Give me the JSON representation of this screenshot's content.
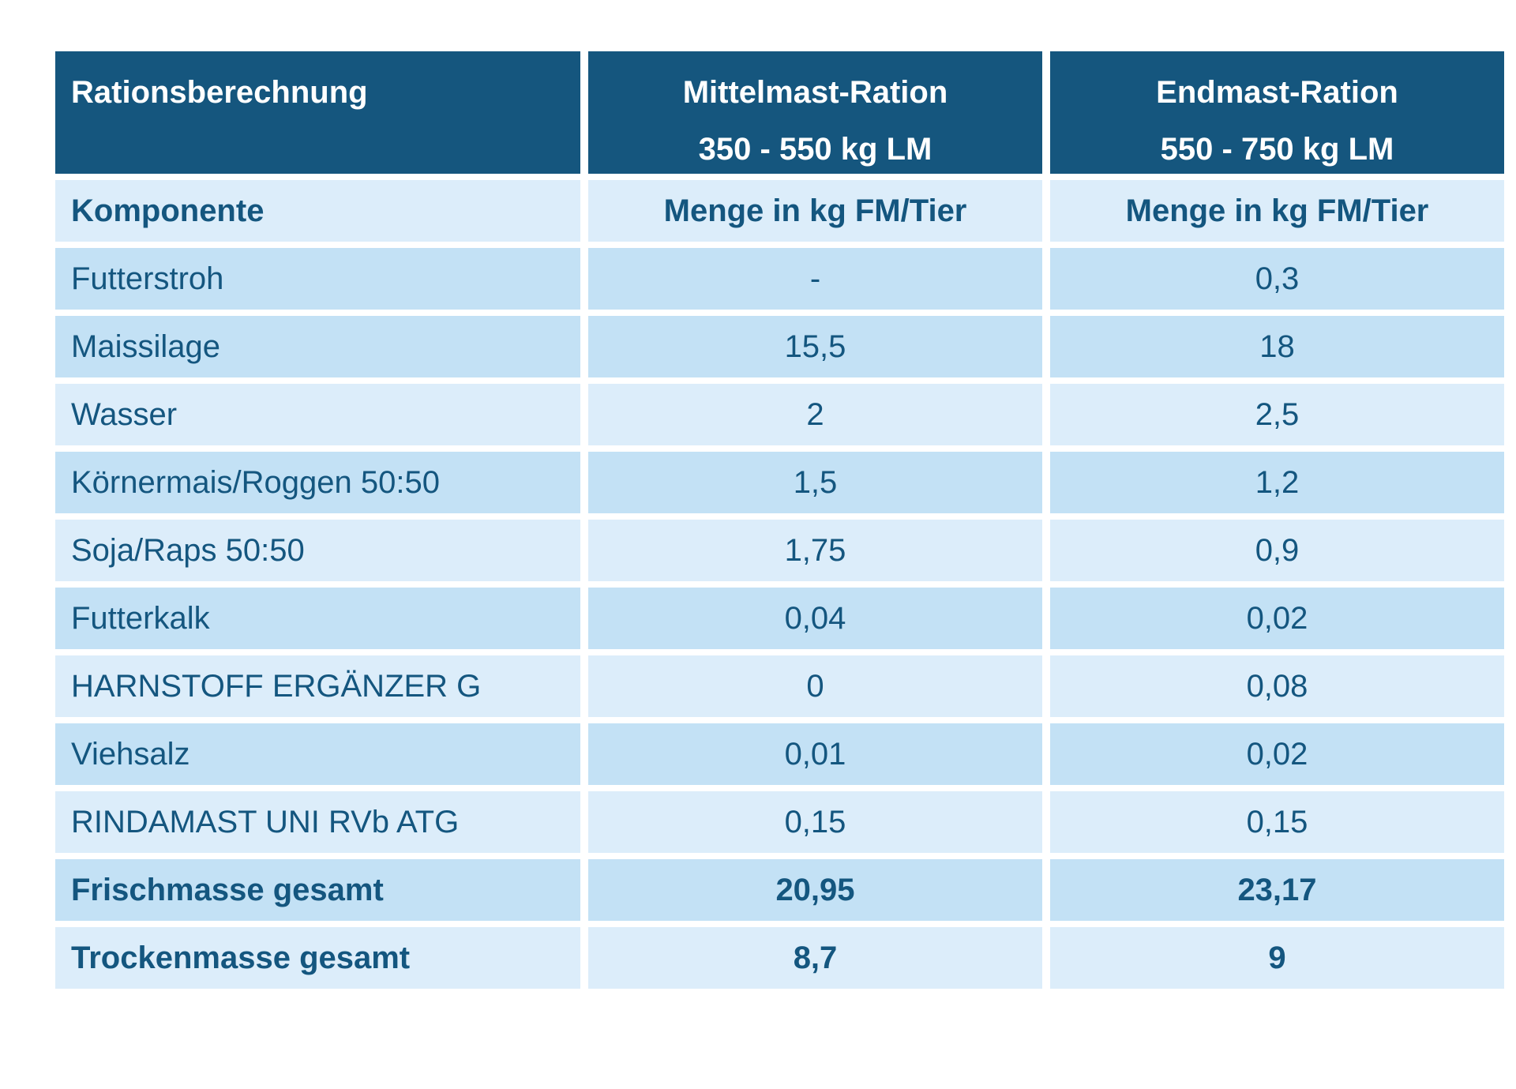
{
  "table": {
    "colors": {
      "header_bg": "#15567e",
      "row_light": "#dcedfa",
      "row_dark": "#c3e1f5",
      "text_blue": "#14567f"
    },
    "header": {
      "col1_line1": "Rationsberechnung",
      "col1_line2": "",
      "col2_line1": "Mittelmast-Ration",
      "col2_line2": "350 - 550 kg LM",
      "col3_line1": "Endmast-Ration",
      "col3_line2": "550 - 750 kg LM"
    },
    "rows": [
      {
        "name": "Komponente",
        "v1": "Menge in kg FM/Tier",
        "v2": "Menge in kg FM/Tier",
        "shade": "light",
        "bold": true,
        "name_align_bold": true
      },
      {
        "name": "Futterstroh",
        "v1": "-",
        "v2": "0,3",
        "shade": "dark",
        "bold": false
      },
      {
        "name": "Maissilage",
        "v1": "15,5",
        "v2": "18",
        "shade": "dark",
        "bold": false
      },
      {
        "name": "Wasser",
        "v1": "2",
        "v2": "2,5",
        "shade": "light",
        "bold": false
      },
      {
        "name": "Körnermais/Roggen 50:50",
        "v1": "1,5",
        "v2": "1,2",
        "shade": "dark",
        "bold": false
      },
      {
        "name": "Soja/Raps 50:50",
        "v1": "1,75",
        "v2": "0,9",
        "shade": "light",
        "bold": false
      },
      {
        "name": "Futterkalk",
        "v1": "0,04",
        "v2": "0,02",
        "shade": "dark",
        "bold": false
      },
      {
        "name": "HARNSTOFF ERGÄNZER G",
        "v1": "0",
        "v2": "0,08",
        "shade": "light",
        "bold": false
      },
      {
        "name": "Viehsalz",
        "v1": "0,01",
        "v2": "0,02",
        "shade": "dark",
        "bold": false
      },
      {
        "name": "RINDAMAST UNI RVb ATG",
        "v1": "0,15",
        "v2": "0,15",
        "shade": "light",
        "bold": false
      },
      {
        "name": "Frischmasse gesamt",
        "v1": "20,95",
        "v2": "23,17",
        "shade": "dark",
        "bold": true
      },
      {
        "name": "Trockenmasse gesamt",
        "v1": "8,7",
        "v2": "9",
        "shade": "light",
        "bold": true
      }
    ]
  }
}
